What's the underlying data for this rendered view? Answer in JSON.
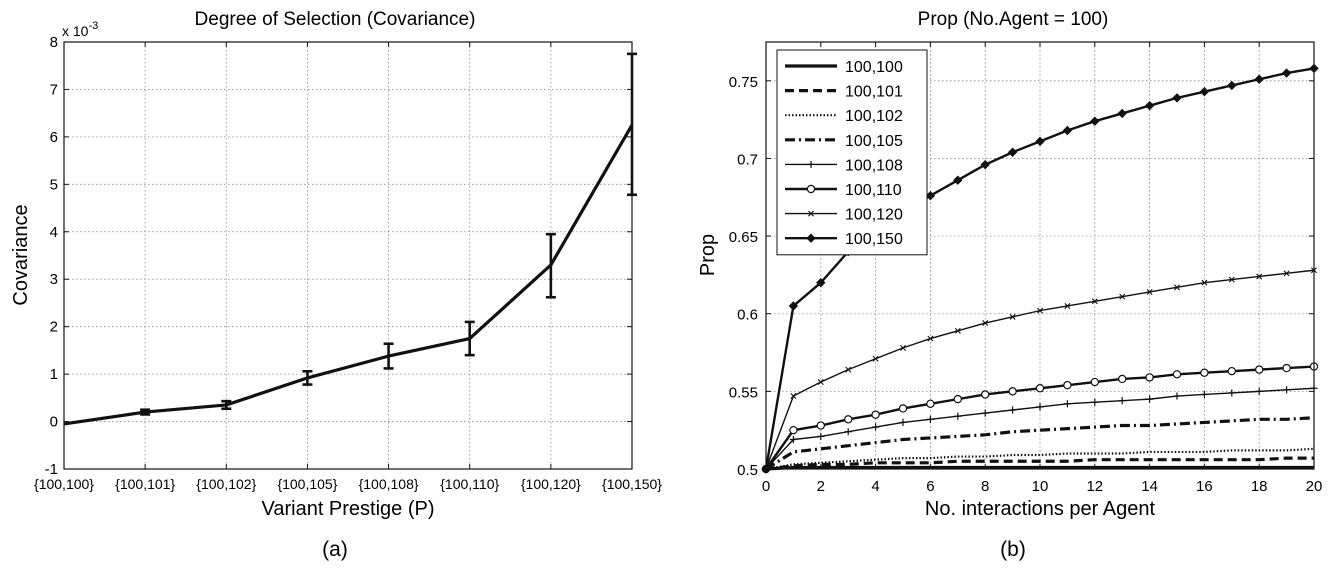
{
  "chart_data": [
    {
      "type": "line",
      "caption": "(a)",
      "title": "Degree of Selection (Covariance)",
      "xlabel": "Variant Prestige (P)",
      "ylabel": "Covariance",
      "y_exponent_base": "x 10",
      "y_exponent_power": "-3",
      "ylim": [
        -1,
        8
      ],
      "yticks": [
        -1,
        0,
        1,
        2,
        3,
        4,
        5,
        6,
        7,
        8
      ],
      "grid": true,
      "categories": [
        "{100,100}",
        "{100,101}",
        "{100,102}",
        "{100,105}",
        "{100,108}",
        "{100,110}",
        "{100,120}",
        "{100,150}"
      ],
      "series": [
        {
          "values": [
            -0.05,
            0.2,
            0.35,
            0.92,
            1.38,
            1.75,
            3.3,
            6.25
          ],
          "err_low": [
            -0.05,
            0.15,
            0.27,
            0.78,
            1.12,
            1.4,
            2.62,
            4.78
          ],
          "err_high": [
            -0.05,
            0.25,
            0.43,
            1.06,
            1.64,
            2.1,
            3.95,
            7.75
          ],
          "color": "#111111"
        }
      ]
    },
    {
      "type": "line",
      "caption": "(b)",
      "title": "Prop (No.Agent = 100)",
      "xlabel": "No. interactions per Agent",
      "ylabel": "Prop",
      "xlim": [
        0,
        20
      ],
      "ylim": [
        0.5,
        0.775
      ],
      "xticks": [
        0,
        2,
        4,
        6,
        8,
        10,
        12,
        14,
        16,
        18,
        20
      ],
      "yticks": [
        0.5,
        0.55,
        0.6,
        0.65,
        0.7,
        0.75
      ],
      "grid": true,
      "legend_position": "top-left",
      "x": [
        0,
        1,
        2,
        3,
        4,
        5,
        6,
        7,
        8,
        9,
        10,
        11,
        12,
        13,
        14,
        15,
        16,
        17,
        18,
        19,
        20
      ],
      "series": [
        {
          "name": "100,100",
          "style": "solid-thick",
          "marker": "none",
          "values": [
            0.5,
            0.501,
            0.501,
            0.501,
            0.501,
            0.501,
            0.501,
            0.501,
            0.501,
            0.501,
            0.501,
            0.501,
            0.501,
            0.501,
            0.501,
            0.501,
            0.501,
            0.501,
            0.501,
            0.501,
            0.501
          ]
        },
        {
          "name": "100,101",
          "style": "dashed",
          "marker": "none",
          "values": [
            0.5,
            0.502,
            0.503,
            0.503,
            0.504,
            0.504,
            0.504,
            0.505,
            0.505,
            0.505,
            0.505,
            0.505,
            0.506,
            0.506,
            0.506,
            0.506,
            0.506,
            0.506,
            0.506,
            0.507,
            0.507
          ]
        },
        {
          "name": "100,102",
          "style": "dotted",
          "marker": "none",
          "values": [
            0.5,
            0.503,
            0.504,
            0.505,
            0.506,
            0.507,
            0.507,
            0.508,
            0.508,
            0.509,
            0.509,
            0.51,
            0.51,
            0.51,
            0.511,
            0.511,
            0.511,
            0.512,
            0.512,
            0.512,
            0.513
          ]
        },
        {
          "name": "100,105",
          "style": "dashdot",
          "marker": "none",
          "values": [
            0.5,
            0.511,
            0.513,
            0.515,
            0.517,
            0.519,
            0.52,
            0.521,
            0.522,
            0.524,
            0.525,
            0.526,
            0.527,
            0.528,
            0.528,
            0.529,
            0.53,
            0.531,
            0.532,
            0.532,
            0.533
          ]
        },
        {
          "name": "100,108",
          "style": "solid",
          "marker": "plus",
          "values": [
            0.5,
            0.519,
            0.521,
            0.524,
            0.527,
            0.53,
            0.532,
            0.534,
            0.536,
            0.538,
            0.54,
            0.542,
            0.543,
            0.544,
            0.545,
            0.547,
            0.548,
            0.549,
            0.55,
            0.551,
            0.552
          ]
        },
        {
          "name": "100,110",
          "style": "solid-medium",
          "marker": "circle",
          "values": [
            0.5,
            0.525,
            0.528,
            0.532,
            0.535,
            0.539,
            0.542,
            0.545,
            0.548,
            0.55,
            0.552,
            0.554,
            0.556,
            0.558,
            0.559,
            0.561,
            0.562,
            0.563,
            0.564,
            0.565,
            0.566
          ]
        },
        {
          "name": "100,120",
          "style": "solid",
          "marker": "x",
          "values": [
            0.5,
            0.547,
            0.556,
            0.564,
            0.571,
            0.578,
            0.584,
            0.589,
            0.594,
            0.598,
            0.602,
            0.605,
            0.608,
            0.611,
            0.614,
            0.617,
            0.62,
            0.622,
            0.624,
            0.626,
            0.628
          ]
        },
        {
          "name": "100,150",
          "style": "solid-medium",
          "marker": "diamond",
          "values": [
            0.5,
            0.605,
            0.62,
            0.64,
            0.655,
            0.666,
            0.676,
            0.686,
            0.696,
            0.704,
            0.711,
            0.718,
            0.724,
            0.729,
            0.734,
            0.739,
            0.743,
            0.747,
            0.751,
            0.755,
            0.758
          ]
        }
      ]
    }
  ]
}
